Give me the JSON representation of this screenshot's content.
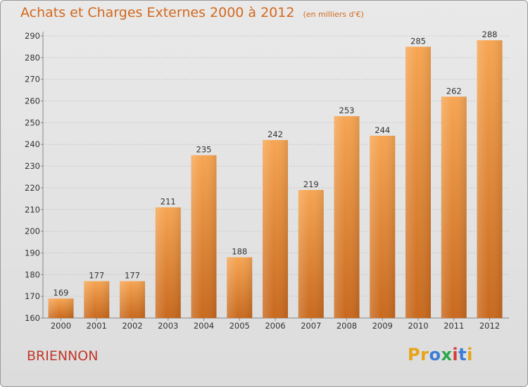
{
  "header": {
    "title": "Achats et Charges Externes 2000 à 2012",
    "subtitle": "(en milliers d'€)"
  },
  "footer": {
    "commune": "BRIENNON",
    "logo_letters": [
      {
        "char": "P",
        "color": "#e8a317"
      },
      {
        "char": "r",
        "color": "#e8a317"
      },
      {
        "char": "o",
        "color": "#3b7dd8"
      },
      {
        "char": "x",
        "color": "#2aa84a"
      },
      {
        "char": "i",
        "color": "#d93a3a"
      },
      {
        "char": "t",
        "color": "#3b7dd8"
      },
      {
        "char": "i",
        "color": "#e8a317"
      }
    ]
  },
  "colors": {
    "bar_light": "#f6a552",
    "bar_dark": "#c8691e",
    "title": "#d2691e",
    "commune": "#c0392b"
  },
  "chart_data": {
    "type": "bar",
    "title": "Achats et Charges Externes 2000 à 2012",
    "subtitle": "(en milliers d'€)",
    "categories": [
      "2000",
      "2001",
      "2002",
      "2003",
      "2004",
      "2005",
      "2006",
      "2007",
      "2008",
      "2009",
      "2010",
      "2011",
      "2012"
    ],
    "values": [
      169,
      177,
      177,
      211,
      235,
      188,
      242,
      219,
      253,
      244,
      285,
      262,
      288
    ],
    "ylim": [
      160,
      290
    ],
    "yticks": [
      160,
      170,
      180,
      190,
      200,
      210,
      220,
      230,
      240,
      250,
      260,
      270,
      280,
      290
    ],
    "grid": true,
    "data_labels": true
  }
}
